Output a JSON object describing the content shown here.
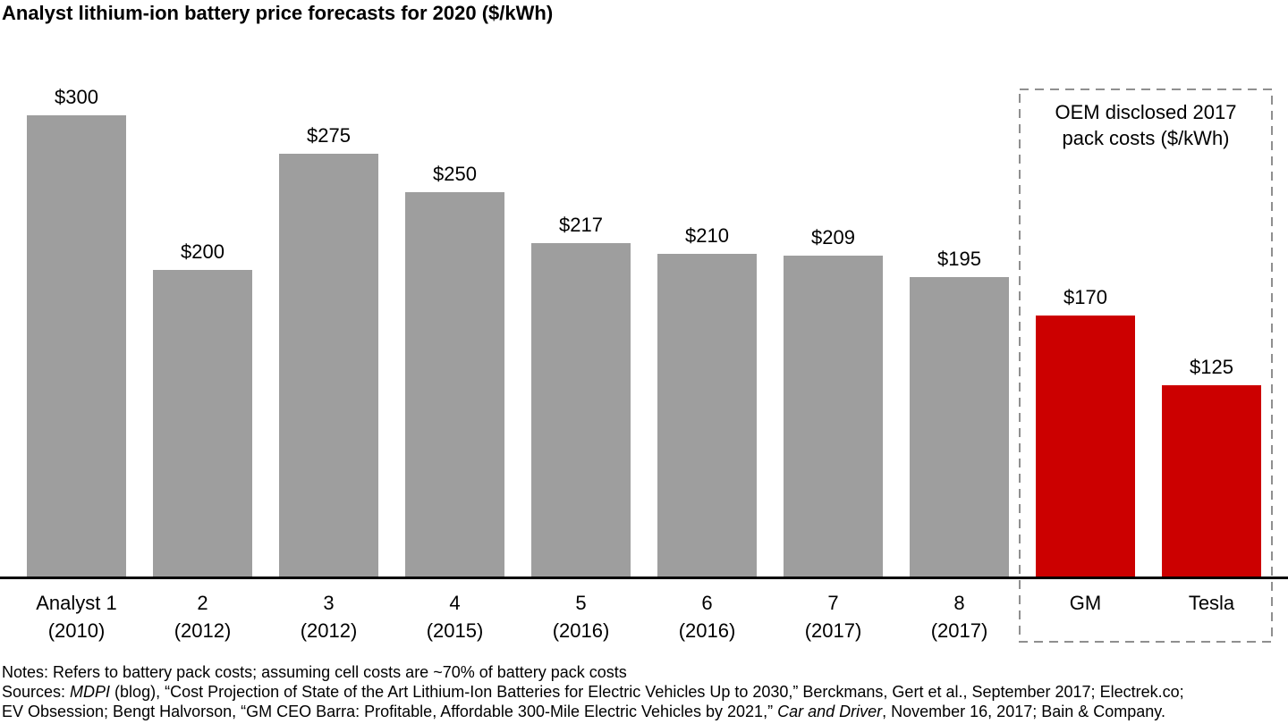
{
  "chart_data": {
    "type": "bar",
    "title": "Analyst lithium-ion battery price forecasts for 2020 ($/kWh)",
    "unit": "$/kWh",
    "ylim": [
      0,
      300
    ],
    "grid": false,
    "legend": "none",
    "colors": {
      "analyst": "#9e9e9e",
      "oem": "#cc0000"
    },
    "bars": [
      {
        "label": "Analyst 1",
        "sublabel": "(2010)",
        "value": 300,
        "value_label": "$300",
        "group": "analyst"
      },
      {
        "label": "2",
        "sublabel": "(2012)",
        "value": 200,
        "value_label": "$200",
        "group": "analyst"
      },
      {
        "label": "3",
        "sublabel": "(2012)",
        "value": 275,
        "value_label": "$275",
        "group": "analyst"
      },
      {
        "label": "4",
        "sublabel": "(2015)",
        "value": 250,
        "value_label": "$250",
        "group": "analyst"
      },
      {
        "label": "5",
        "sublabel": "(2016)",
        "value": 217,
        "value_label": "$217",
        "group": "analyst"
      },
      {
        "label": "6",
        "sublabel": "(2016)",
        "value": 210,
        "value_label": "$210",
        "group": "analyst"
      },
      {
        "label": "7",
        "sublabel": "(2017)",
        "value": 209,
        "value_label": "$209",
        "group": "analyst"
      },
      {
        "label": "8",
        "sublabel": "(2017)",
        "value": 195,
        "value_label": "$195",
        "group": "analyst"
      },
      {
        "label": "GM",
        "sublabel": "",
        "value": 170,
        "value_label": "$170",
        "group": "oem"
      },
      {
        "label": "Tesla",
        "sublabel": "",
        "value": 125,
        "value_label": "$125",
        "group": "oem"
      }
    ],
    "annotation_box": {
      "line1": "OEM disclosed 2017",
      "line2": "pack costs ($/kWh)"
    }
  },
  "notes": {
    "line1": "Notes: Refers to battery pack costs; assuming cell costs are ~70% of battery pack costs",
    "line2": {
      "prefix": "Sources: ",
      "italic": "MDPI",
      "rest": " (blog), “Cost Projection of State of the Art Lithium-Ion Batteries for Electric Vehicles Up to 2030,” Berckmans, Gert et al., September 2017; Electrek.co;"
    },
    "line3": {
      "prefix": "EV Obsession; Bengt Halvorson, “GM CEO Barra: Profitable, Affordable 300-Mile Electric Vehicles by 2021,” ",
      "italic": "Car and Driver",
      "rest": ", November 16, 2017; Bain & Company."
    }
  }
}
